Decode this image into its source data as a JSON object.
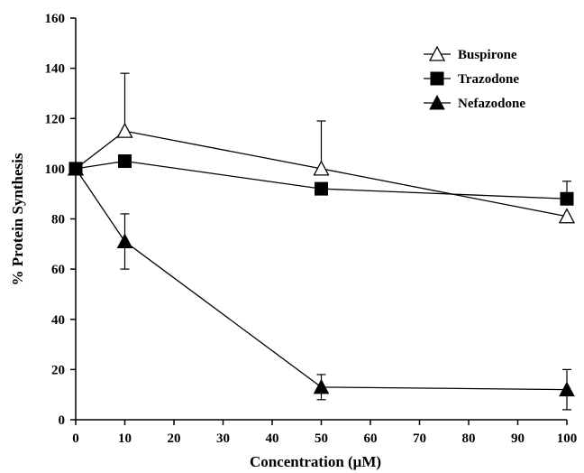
{
  "chart_data": {
    "type": "line",
    "title": "",
    "xlabel": "Concentration (μM)",
    "ylabel": "% Protein Synthesis",
    "xlim": [
      0,
      100
    ],
    "ylim": [
      0,
      160
    ],
    "xticks": [
      0,
      10,
      20,
      30,
      40,
      50,
      60,
      70,
      80,
      90,
      100
    ],
    "yticks": [
      0,
      20,
      40,
      60,
      80,
      100,
      120,
      140,
      160
    ],
    "x": [
      0,
      10,
      50,
      100
    ],
    "grid": false,
    "legend_position": "top-right",
    "series": [
      {
        "name": "Buspirone",
        "marker": "open-triangle",
        "values": [
          100,
          115,
          100,
          81
        ],
        "error_upper": [
          0,
          23,
          19,
          0
        ],
        "error_lower": [
          0,
          0,
          0,
          0
        ]
      },
      {
        "name": "Trazodone",
        "marker": "filled-square",
        "values": [
          100,
          103,
          92,
          88
        ],
        "error_upper": [
          0,
          0,
          0,
          7
        ],
        "error_lower": [
          0,
          0,
          0,
          0
        ]
      },
      {
        "name": "Nefazodone",
        "marker": "filled-triangle",
        "values": [
          100,
          71,
          13,
          12
        ],
        "error_upper": [
          0,
          11,
          5,
          8
        ],
        "error_lower": [
          0,
          11,
          5,
          8
        ]
      }
    ]
  }
}
